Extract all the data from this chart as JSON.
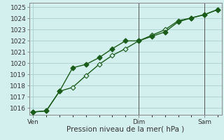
{
  "xlabel": "Pression niveau de la mer( hPa )",
  "ylim": [
    1015.4,
    1025.4
  ],
  "yticks": [
    1016,
    1017,
    1018,
    1019,
    1020,
    1021,
    1022,
    1023,
    1024,
    1025
  ],
  "xtick_labels": [
    "Ven",
    "Dim",
    "Sam"
  ],
  "xtick_positions": [
    0,
    8,
    13
  ],
  "xlim": [
    -0.3,
    14.3
  ],
  "line1_x": [
    0,
    1,
    2,
    3,
    4,
    5,
    6,
    7,
    8,
    9,
    10,
    11,
    12,
    13,
    14
  ],
  "line1_y": [
    1015.65,
    1015.75,
    1017.5,
    1019.6,
    1019.9,
    1020.5,
    1021.3,
    1022.0,
    1022.0,
    1022.4,
    1022.8,
    1023.7,
    1024.05,
    1024.35,
    1024.8
  ],
  "line2_x": [
    0,
    1,
    2,
    3,
    4,
    5,
    6,
    7,
    8,
    9,
    10,
    11,
    12,
    13,
    14
  ],
  "line2_y": [
    1015.65,
    1015.75,
    1017.5,
    1017.85,
    1018.9,
    1019.9,
    1020.7,
    1021.3,
    1022.0,
    1022.5,
    1023.0,
    1023.8,
    1024.05,
    1024.35,
    1024.8
  ],
  "vline_positions": [
    8,
    13
  ],
  "line_color": "#1a5c1a",
  "bg_color": "#d4f0ee",
  "grid_color": "#aacfcf",
  "axis_color": "#555555",
  "marker_size": 3.5,
  "linewidth": 1.0,
  "xlabel_fontsize": 7.5,
  "tick_fontsize": 6.5
}
